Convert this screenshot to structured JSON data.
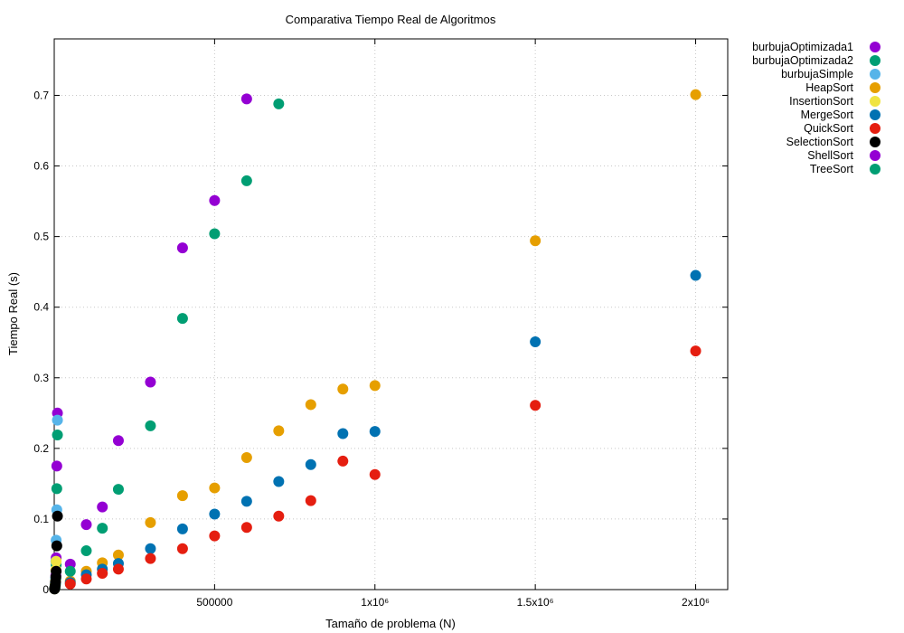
{
  "chart_data": {
    "type": "scatter",
    "title": "Comparativa Tiempo Real de Algoritmos",
    "xlabel": "Tamaño de problema (N)",
    "ylabel": "Tiempo Real (s)",
    "xlim": [
      0,
      2100000
    ],
    "ylim": [
      0,
      0.78
    ],
    "x_ticks": [
      {
        "value": 500000,
        "label": "500000"
      },
      {
        "value": 1000000,
        "label": "1x10⁶"
      },
      {
        "value": 1500000,
        "label": "1.5x10⁶"
      },
      {
        "value": 2000000,
        "label": "2x10⁶"
      }
    ],
    "y_ticks": [
      {
        "value": 0,
        "label": "0"
      },
      {
        "value": 0.1,
        "label": "0.1"
      },
      {
        "value": 0.2,
        "label": "0.2"
      },
      {
        "value": 0.3,
        "label": "0.3"
      },
      {
        "value": 0.4,
        "label": "0.4"
      },
      {
        "value": 0.5,
        "label": "0.5"
      },
      {
        "value": 0.6,
        "label": "0.6"
      },
      {
        "value": 0.7,
        "label": "0.7"
      }
    ],
    "grid": true,
    "legend_position": "outside-right",
    "series": [
      {
        "name": "burbujaOptimizada1",
        "color": "#9400d3",
        "x": [
          1000,
          2000,
          3000,
          4000,
          5000,
          6000,
          8000,
          10000
        ],
        "y": [
          0.001,
          0.002,
          0.005,
          0.01,
          0.02,
          0.045,
          0.175,
          0.25
        ]
      },
      {
        "name": "burbujaOptimizada2",
        "color": "#009e73",
        "x": [
          1000,
          2000,
          3000,
          4000,
          5000,
          6000,
          8000,
          10000
        ],
        "y": [
          0.001,
          0.002,
          0.004,
          0.008,
          0.015,
          0.035,
          0.143,
          0.219
        ]
      },
      {
        "name": "burbujaSimple",
        "color": "#56b4e9",
        "x": [
          1000,
          2000,
          3000,
          4000,
          5000,
          6000,
          8000,
          10000
        ],
        "y": [
          0.002,
          0.004,
          0.008,
          0.015,
          0.04,
          0.07,
          0.113,
          0.24
        ]
      },
      {
        "name": "HeapSort",
        "color": "#e69f00",
        "x": [
          50000,
          100000,
          150000,
          200000,
          300000,
          400000,
          500000,
          600000,
          700000,
          800000,
          900000,
          1000000,
          1500000,
          2000000
        ],
        "y": [
          0.012,
          0.026,
          0.038,
          0.049,
          0.095,
          0.133,
          0.144,
          0.187,
          0.225,
          0.262,
          0.284,
          0.289,
          0.494,
          0.701
        ]
      },
      {
        "name": "InsertionSort",
        "color": "#f0e442",
        "x": [
          1000,
          2000,
          3000,
          4000,
          5000,
          6000
        ],
        "y": [
          0.001,
          0.003,
          0.007,
          0.012,
          0.028,
          0.04
        ]
      },
      {
        "name": "MergeSort",
        "color": "#0072b2",
        "x": [
          50000,
          100000,
          150000,
          200000,
          300000,
          400000,
          500000,
          600000,
          700000,
          800000,
          900000,
          1000000,
          1500000,
          2000000
        ],
        "y": [
          0.01,
          0.021,
          0.029,
          0.037,
          0.058,
          0.086,
          0.107,
          0.125,
          0.153,
          0.177,
          0.221,
          0.224,
          0.351,
          0.445
        ]
      },
      {
        "name": "QuickSort",
        "color": "#e51e10",
        "x": [
          50000,
          100000,
          150000,
          200000,
          300000,
          400000,
          500000,
          600000,
          700000,
          800000,
          900000,
          1000000,
          1500000,
          2000000
        ],
        "y": [
          0.008,
          0.015,
          0.023,
          0.029,
          0.044,
          0.058,
          0.076,
          0.088,
          0.104,
          0.126,
          0.182,
          0.163,
          0.261,
          0.338
        ]
      },
      {
        "name": "SelectionSort",
        "color": "#000000",
        "x": [
          1000,
          2000,
          3000,
          4000,
          5000,
          6000,
          8000,
          10000
        ],
        "y": [
          0.001,
          0.003,
          0.006,
          0.011,
          0.018,
          0.026,
          0.062,
          0.104
        ]
      },
      {
        "name": "ShellSort",
        "color": "#9400d3",
        "x": [
          50000,
          100000,
          150000,
          200000,
          300000,
          400000,
          500000,
          600000
        ],
        "y": [
          0.036,
          0.092,
          0.117,
          0.211,
          0.294,
          0.484,
          0.551,
          0.695
        ]
      },
      {
        "name": "TreeSort",
        "color": "#009e73",
        "x": [
          50000,
          100000,
          150000,
          200000,
          300000,
          400000,
          500000,
          600000,
          700000
        ],
        "y": [
          0.026,
          0.055,
          0.087,
          0.142,
          0.232,
          0.384,
          0.504,
          0.579,
          0.688
        ]
      }
    ]
  }
}
